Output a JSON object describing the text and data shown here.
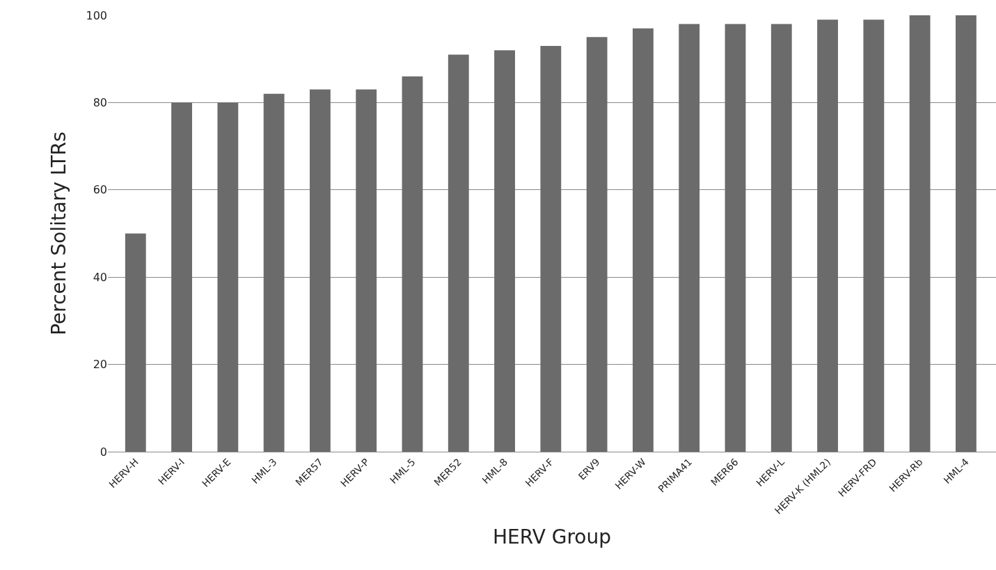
{
  "chart_data": {
    "type": "bar",
    "xlabel": "HERV Group",
    "ylabel": "Percent Solitary LTRs",
    "categories": [
      "HERV-H",
      "HERV-I",
      "HERV-E",
      "HML-3",
      "MER57",
      "HERV-P",
      "HML-5",
      "MER52",
      "HML-8",
      "HERV-F",
      "ERV9",
      "HERV-W",
      "PRIMA41",
      "MER66",
      "HERV-L",
      "HERV-K (HML2)",
      "HERV-FRD",
      "HERV-Rb",
      "HML-4"
    ],
    "values": [
      50,
      80,
      80,
      82,
      83,
      83,
      86,
      91,
      92,
      93,
      95,
      97,
      98,
      98,
      98,
      99,
      99,
      100,
      100
    ],
    "color": "#6b6b6b",
    "ylim": [
      0,
      100
    ],
    "yticks": [
      0,
      20,
      40,
      60,
      80,
      100
    ],
    "grid": "y"
  }
}
